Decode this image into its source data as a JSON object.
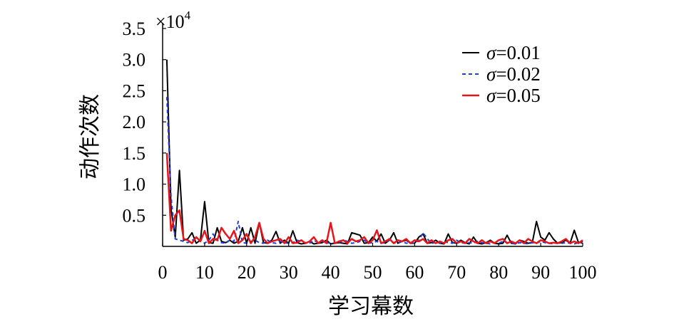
{
  "chart_data": {
    "type": "line",
    "xlabel": "学习幕数",
    "ylabel": "动作次数",
    "multiplier_label": "×10",
    "multiplier_exp": "4",
    "xlim": [
      0,
      100
    ],
    "ylim": [
      0,
      3.5
    ],
    "xticks": [
      "0",
      "10",
      "20",
      "30",
      "40",
      "50",
      "60",
      "70",
      "80",
      "90",
      "100"
    ],
    "yticks": [
      "0.5",
      "1.0",
      "1.5",
      "2.0",
      "2.5",
      "3.0",
      "3.5"
    ],
    "legend_position": "top-right",
    "legend_symbol": "σ",
    "colors": {
      "s001": "#000000",
      "s002": "#1f3fd6",
      "s005": "#e8141c"
    },
    "x": [
      1,
      2,
      3,
      4,
      5,
      6,
      7,
      8,
      9,
      10,
      11,
      12,
      13,
      14,
      15,
      16,
      17,
      18,
      19,
      20,
      21,
      22,
      23,
      24,
      25,
      26,
      27,
      28,
      29,
      30,
      31,
      32,
      33,
      34,
      35,
      36,
      37,
      38,
      39,
      40,
      41,
      42,
      43,
      44,
      45,
      46,
      47,
      48,
      49,
      50,
      51,
      52,
      53,
      54,
      55,
      56,
      57,
      58,
      59,
      60,
      61,
      62,
      63,
      64,
      65,
      66,
      67,
      68,
      69,
      70,
      71,
      72,
      73,
      74,
      75,
      76,
      77,
      78,
      79,
      80,
      81,
      82,
      83,
      84,
      85,
      86,
      87,
      88,
      89,
      90,
      91,
      92,
      93,
      94,
      95,
      96,
      97,
      98,
      99,
      100
    ],
    "series": [
      {
        "name": "=0.01",
        "values": [
          3.0,
          0.6,
          0.15,
          1.22,
          0.1,
          0.12,
          0.22,
          0.05,
          0.1,
          0.72,
          0.06,
          0.05,
          0.3,
          0.08,
          0.06,
          0.1,
          0.05,
          0.08,
          0.3,
          0.05,
          0.3,
          0.05,
          0.38,
          0.06,
          0.05,
          0.1,
          0.24,
          0.05,
          0.1,
          0.05,
          0.25,
          0.06,
          0.04,
          0.05,
          0.08,
          0.04,
          0.05,
          0.06,
          0.1,
          0.04,
          0.05,
          0.06,
          0.05,
          0.04,
          0.22,
          0.2,
          0.18,
          0.05,
          0.06,
          0.15,
          0.08,
          0.2,
          0.05,
          0.1,
          0.22,
          0.05,
          0.08,
          0.1,
          0.05,
          0.05,
          0.15,
          0.2,
          0.05,
          0.06,
          0.1,
          0.05,
          0.04,
          0.2,
          0.06,
          0.05,
          0.1,
          0.06,
          0.04,
          0.15,
          0.05,
          0.04,
          0.06,
          0.1,
          0.05,
          0.04,
          0.05,
          0.18,
          0.05,
          0.04,
          0.1,
          0.08,
          0.05,
          0.06,
          0.4,
          0.15,
          0.1,
          0.22,
          0.12,
          0.05,
          0.06,
          0.1,
          0.05,
          0.26,
          0.06,
          0.08
        ]
      },
      {
        "name": "=0.02",
        "values": [
          2.4,
          0.8,
          0.12,
          0.1,
          0.08,
          0.06,
          0.1,
          0.12,
          0.1,
          0.05,
          0.1,
          0.2,
          0.1,
          0.06,
          0.05,
          0.1,
          0.08,
          0.4,
          0.06,
          0.05,
          0.08,
          0.1,
          0.06,
          0.05,
          0.1,
          0.06,
          0.05,
          0.08,
          0.06,
          0.05,
          0.06,
          0.1,
          0.08,
          0.06,
          0.05,
          0.1,
          0.06,
          0.08,
          0.05,
          0.06,
          0.05,
          0.06,
          0.1,
          0.08,
          0.05,
          0.06,
          0.08,
          0.1,
          0.05,
          0.06,
          0.08,
          0.05,
          0.06,
          0.1,
          0.05,
          0.06,
          0.08,
          0.05,
          0.06,
          0.05,
          0.1,
          0.22,
          0.12,
          0.05,
          0.06,
          0.05,
          0.08,
          0.06,
          0.05,
          0.1,
          0.06,
          0.05,
          0.06,
          0.05,
          0.08,
          0.06,
          0.05,
          0.04,
          0.06,
          0.05,
          0.08,
          0.06,
          0.05,
          0.04,
          0.06,
          0.05,
          0.04,
          0.06,
          0.05,
          0.08,
          0.06,
          0.05,
          0.04,
          0.06,
          0.05,
          0.06,
          0.05,
          0.04,
          0.06,
          0.05
        ]
      },
      {
        "name": "=0.05",
        "values": [
          1.5,
          0.25,
          0.5,
          0.58,
          0.12,
          0.1,
          0.05,
          0.15,
          0.08,
          0.25,
          0.05,
          0.12,
          0.1,
          0.3,
          0.2,
          0.12,
          0.25,
          0.05,
          0.1,
          0.2,
          0.05,
          0.15,
          0.38,
          0.12,
          0.05,
          0.08,
          0.1,
          0.12,
          0.05,
          0.15,
          0.05,
          0.06,
          0.1,
          0.05,
          0.08,
          0.15,
          0.05,
          0.1,
          0.05,
          0.38,
          0.05,
          0.08,
          0.1,
          0.05,
          0.12,
          0.08,
          0.1,
          0.15,
          0.05,
          0.1,
          0.26,
          0.05,
          0.08,
          0.12,
          0.05,
          0.1,
          0.08,
          0.12,
          0.05,
          0.1,
          0.08,
          0.12,
          0.05,
          0.1,
          0.05,
          0.08,
          0.05,
          0.1,
          0.12,
          0.05,
          0.08,
          0.05,
          0.12,
          0.08,
          0.05,
          0.1,
          0.05,
          0.08,
          0.05,
          0.1,
          0.12,
          0.05,
          0.08,
          0.05,
          0.1,
          0.05,
          0.12,
          0.08,
          0.05,
          0.1,
          0.08,
          0.05,
          0.06,
          0.05,
          0.08,
          0.12,
          0.05,
          0.08,
          0.05,
          0.1
        ]
      }
    ]
  }
}
